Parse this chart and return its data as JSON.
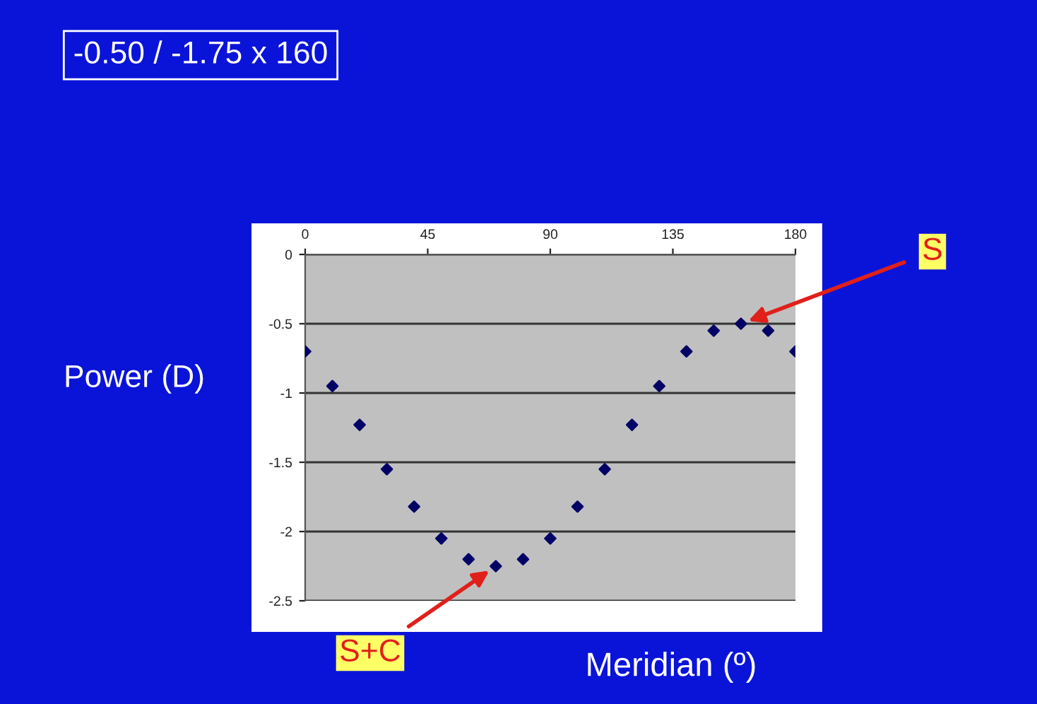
{
  "chart_data": {
    "type": "scatter",
    "xlabel": "Meridian (º)",
    "ylabel": "Power (D)",
    "x": [
      0,
      10,
      20,
      30,
      40,
      50,
      60,
      70,
      80,
      90,
      100,
      110,
      120,
      130,
      140,
      150,
      160,
      170,
      180
    ],
    "series": [
      {
        "color": "#000066",
        "values": [
          -0.7,
          -0.95,
          -1.23,
          -1.55,
          -1.82,
          -2.05,
          -2.2,
          -2.25,
          -2.2,
          -2.05,
          -1.82,
          -1.55,
          -1.23,
          -0.95,
          -0.7,
          -0.55,
          -0.5,
          -0.55,
          -0.7
        ]
      }
    ],
    "xlim": [
      0,
      180
    ],
    "xticks": [
      0,
      45,
      90,
      135,
      180
    ],
    "ylim": [
      -2.5,
      0
    ],
    "yticks": [
      0,
      -0.5,
      -1,
      -1.5,
      -2,
      -2.5
    ],
    "grid": "y",
    "marker": "diamond",
    "annotations": [
      "-0.50 / -1.75 x 160",
      {
        "text": "S",
        "x": 160,
        "y": -0.5
      },
      {
        "text": "S+C",
        "x": 70,
        "y": -2.25
      }
    ]
  }
}
